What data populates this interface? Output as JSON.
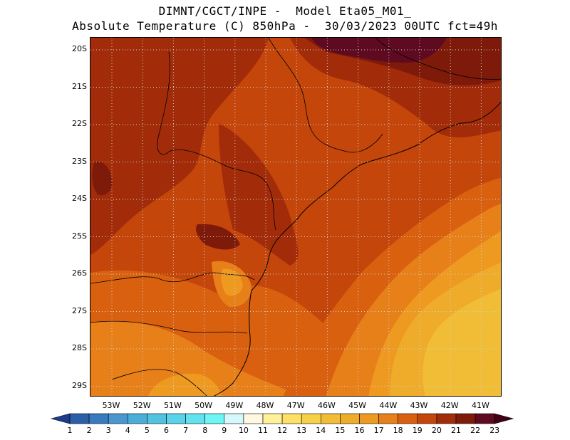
{
  "title": {
    "line1": "DIMNT/CGCT/INPE -  Model Eta05_M01_",
    "line2": "Absolute Temperature (C) 850hPa -  30/03/2023 00UTC fct=49h"
  },
  "map": {
    "lat_labels": [
      "20S",
      "21S",
      "22S",
      "23S",
      "24S",
      "25S",
      "26S",
      "27S",
      "28S",
      "29S"
    ],
    "lon_labels": [
      "53W",
      "52W",
      "51W",
      "50W",
      "49W",
      "48W",
      "47W",
      "46W",
      "45W",
      "44W",
      "43W",
      "42W",
      "41W"
    ],
    "grid": "dotted"
  },
  "colorbar": {
    "labels": [
      "1",
      "2",
      "3",
      "4",
      "5",
      "6",
      "7",
      "8",
      "9",
      "10",
      "11",
      "12",
      "13",
      "14",
      "15",
      "16",
      "17",
      "18",
      "19",
      "20",
      "21",
      "22",
      "23"
    ],
    "colors": [
      "#1f3b8c",
      "#2b5fa8",
      "#3a7bbf",
      "#4a96cf",
      "#4aaed8",
      "#4fc3e0",
      "#5ad3e8",
      "#61e3ef",
      "#6ff5f5",
      "#d6f7fb",
      "#fff7df",
      "#fff09a",
      "#ffe066",
      "#f7d04a",
      "#f2bd36",
      "#efac2a",
      "#ee9a20",
      "#e8801a",
      "#d9600f",
      "#c4460b",
      "#a22c0a",
      "#7e1a0a",
      "#5e0a20",
      "#420014"
    ]
  }
}
